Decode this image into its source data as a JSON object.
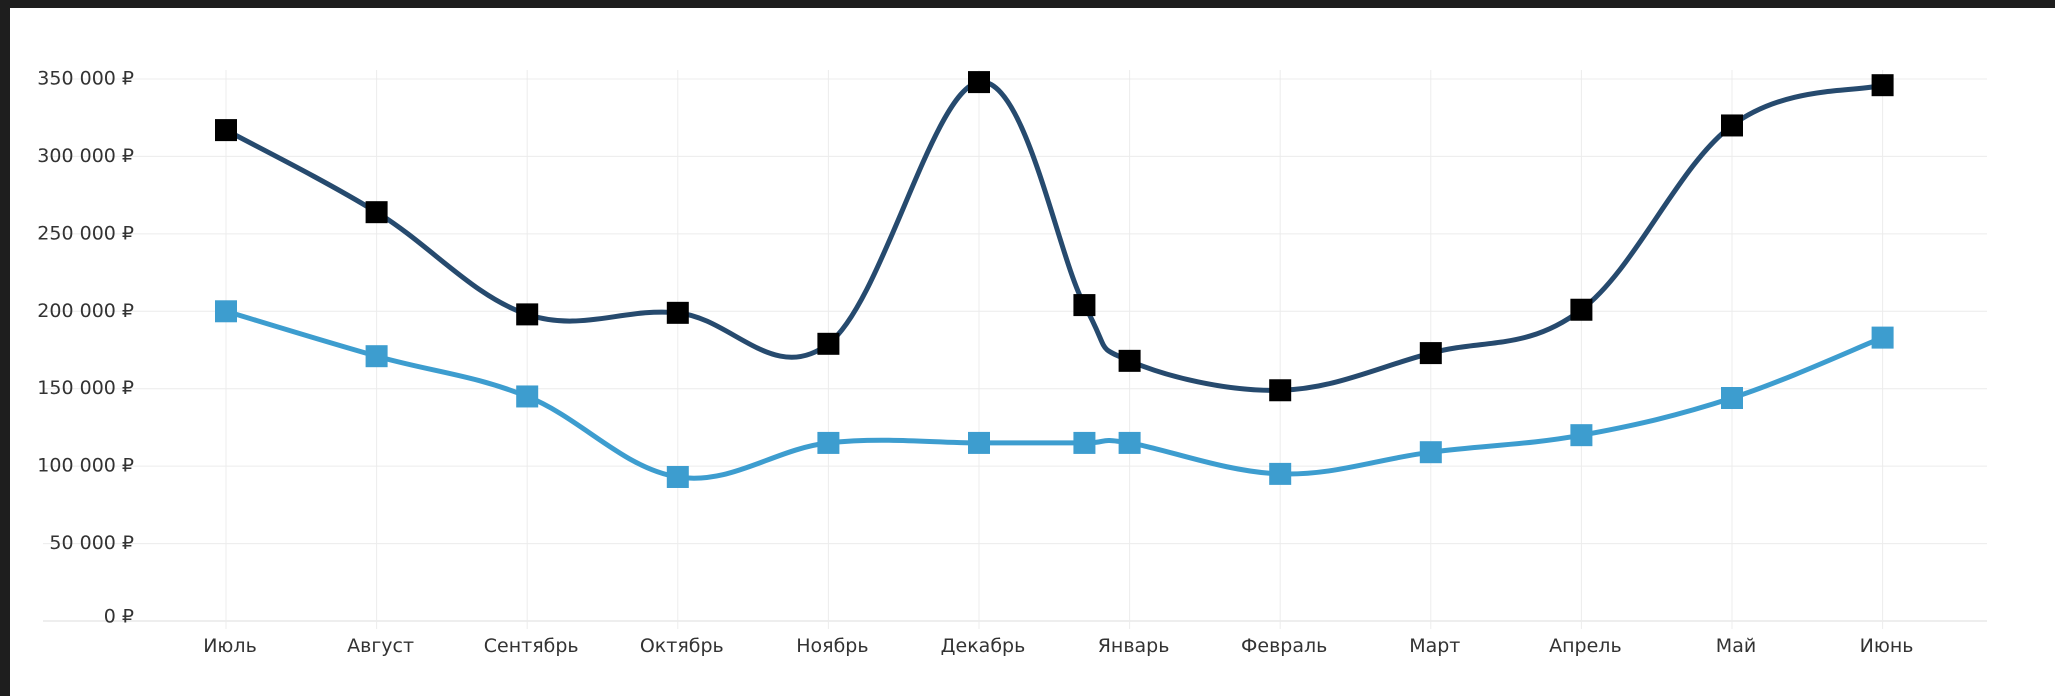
{
  "chart_data": {
    "type": "line",
    "title": "",
    "xlabel": "",
    "ylabel": "",
    "categories": [
      "Июль",
      "Август",
      "Сентябрь",
      "Октябрь",
      "Ноябрь",
      "Декабрь",
      "Январь",
      "Февраль",
      "Март",
      "Апрель",
      "Май",
      "Июнь"
    ],
    "ylim": [
      0,
      350000
    ],
    "yticks": [
      0,
      50000,
      100000,
      150000,
      200000,
      250000,
      300000,
      350000
    ],
    "ytick_labels": [
      "0 ₽",
      "50 000 ₽",
      "100 000 ₽",
      "150 000 ₽",
      "200 000 ₽",
      "250 000 ₽",
      "300 000 ₽",
      "350 000 ₽"
    ],
    "grid": true,
    "legend": false,
    "marker": "square",
    "series": [
      {
        "color": "#264a6e",
        "marker_color": "#000000",
        "points": [
          {
            "x": 0,
            "y": 317000
          },
          {
            "x": 1,
            "y": 264000
          },
          {
            "x": 2,
            "y": 198000
          },
          {
            "x": 3,
            "y": 199000
          },
          {
            "x": 4,
            "y": 179000
          },
          {
            "x": 5,
            "y": 348000
          },
          {
            "x": 5.7,
            "y": 204000
          },
          {
            "x": 6,
            "y": 168000
          },
          {
            "x": 7,
            "y": 149000
          },
          {
            "x": 8,
            "y": 173000
          },
          {
            "x": 9,
            "y": 201000
          },
          {
            "x": 10,
            "y": 320000
          },
          {
            "x": 11,
            "y": 346000
          }
        ]
      },
      {
        "color": "#3d9dcf",
        "marker_color": "#3d9dcf",
        "points": [
          {
            "x": 0,
            "y": 200000
          },
          {
            "x": 1,
            "y": 171000
          },
          {
            "x": 2,
            "y": 145000
          },
          {
            "x": 3,
            "y": 93000
          },
          {
            "x": 4,
            "y": 115000
          },
          {
            "x": 5,
            "y": 115000
          },
          {
            "x": 5.7,
            "y": 115000
          },
          {
            "x": 6,
            "y": 115000
          },
          {
            "x": 7,
            "y": 95000
          },
          {
            "x": 8,
            "y": 109000
          },
          {
            "x": 9,
            "y": 120000
          },
          {
            "x": 10,
            "y": 144000
          },
          {
            "x": 11,
            "y": 183000
          }
        ]
      }
    ]
  }
}
